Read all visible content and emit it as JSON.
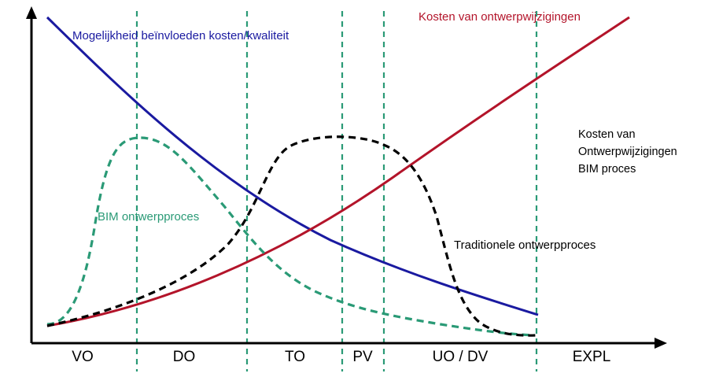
{
  "phases": [
    "VO",
    "DO",
    "TO",
    "PV",
    "UO / DV",
    "EXPL"
  ],
  "curves": {
    "influence": {
      "label": "Mogelijkheid beïnvloeden kosten/kwaliteit",
      "color": "#1a1aa0"
    },
    "change_cost": {
      "label": "Kosten van ontwerpwijzigingen",
      "color": "#b3142a"
    },
    "bim": {
      "label": "BIM ontwerpproces",
      "color": "#2a9a76"
    },
    "traditional": {
      "label": "Traditionele ontwerpproces",
      "color": "#000000"
    }
  },
  "note": {
    "lines": [
      "Kosten van",
      "Ontwerpwijzigingen",
      "BIM proces"
    ]
  },
  "phase_divider_color": "#2a9a76"
}
